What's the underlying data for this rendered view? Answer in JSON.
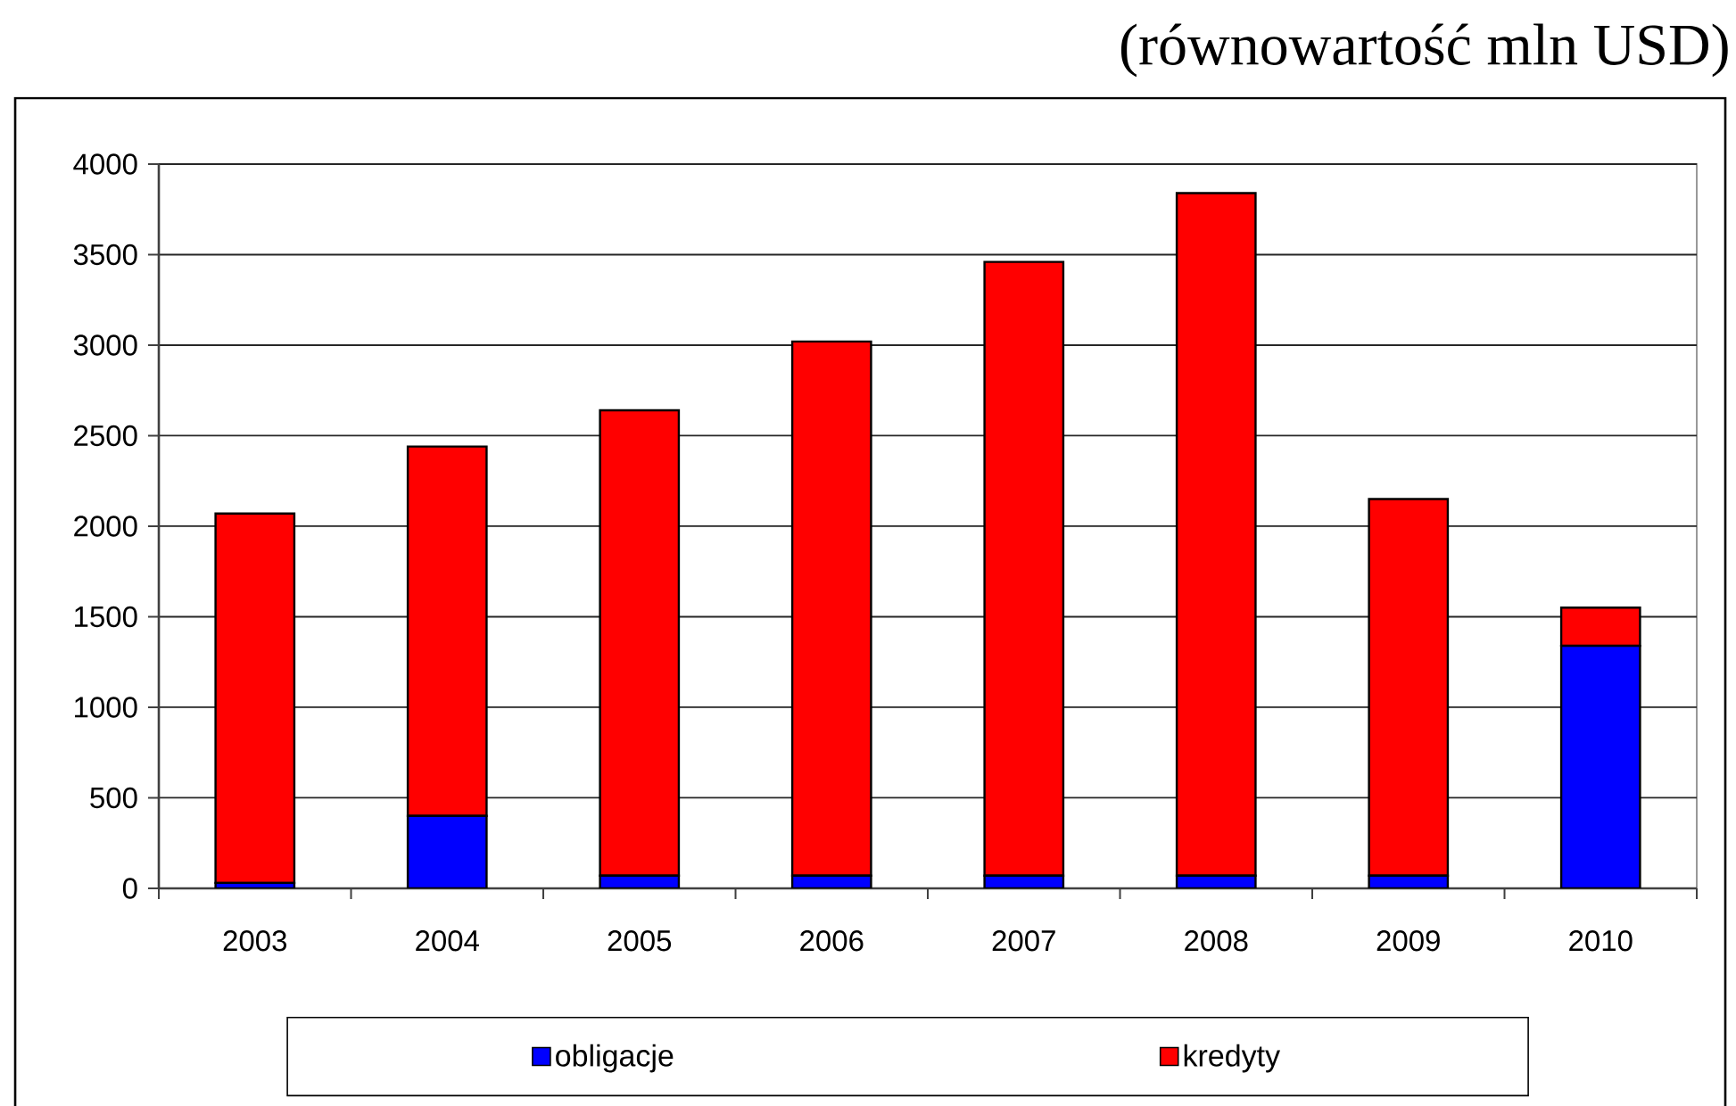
{
  "chart_data": {
    "type": "bar",
    "stacked": true,
    "title": "(równowartość mln USD)",
    "categories": [
      "2003",
      "2004",
      "2005",
      "2006",
      "2007",
      "2008",
      "2009",
      "2010"
    ],
    "series": [
      {
        "name": "obligacje",
        "color": "#0000ff",
        "values": [
          30,
          400,
          70,
          70,
          70,
          70,
          70,
          1340
        ]
      },
      {
        "name": "kredyty",
        "color": "#ff0000",
        "values": [
          2040,
          2040,
          2570,
          2950,
          3390,
          3770,
          2080,
          210
        ]
      }
    ],
    "ylim": [
      0,
      4000
    ],
    "yticks": [
      0,
      500,
      1000,
      1500,
      2000,
      2500,
      3000,
      3500,
      4000
    ],
    "grid": "y",
    "legend": "bottom"
  }
}
